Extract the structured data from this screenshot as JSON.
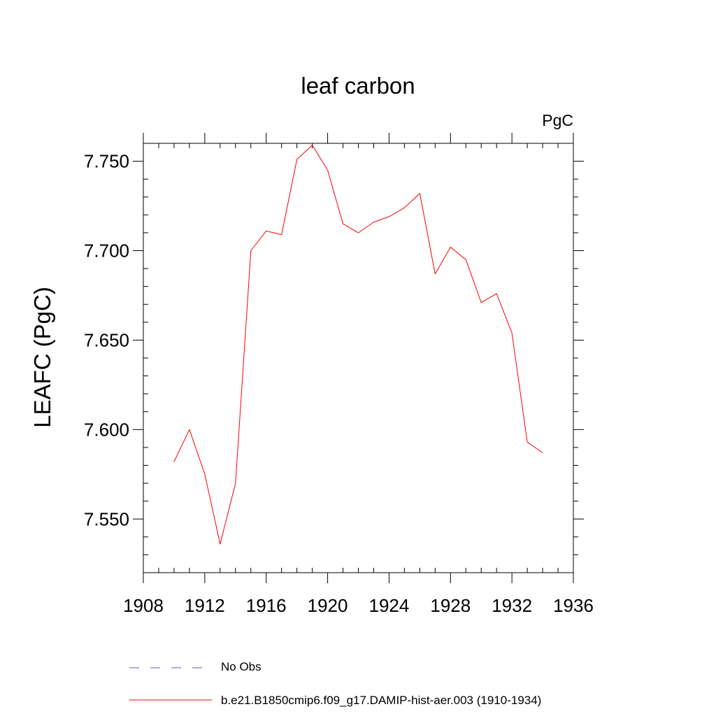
{
  "chart_data": {
    "type": "line",
    "title": "leaf carbon",
    "units_label": "PgC",
    "ylabel": "LEAFC  (PgC)",
    "xlabel": "",
    "xlim": [
      1908,
      1936
    ],
    "ylim": [
      7.52,
      7.76
    ],
    "x_ticks": [
      1908,
      1912,
      1916,
      1920,
      1924,
      1928,
      1932,
      1936
    ],
    "x_tick_labels": [
      "1908",
      "1912",
      "1916",
      "1920",
      "1924",
      "1928",
      "1932",
      "1936"
    ],
    "y_ticks": [
      7.55,
      7.6,
      7.65,
      7.7,
      7.75
    ],
    "y_tick_labels": [
      "7.550",
      "7.600",
      "7.650",
      "7.700",
      "7.750"
    ],
    "grid": false,
    "legend_position": "bottom",
    "series": [
      {
        "name": "b.e21.B1850cmip6.f09_g17.DAMIP-hist-aer.003 (1910-1934)",
        "color": "#ff0000",
        "style": "solid",
        "x": [
          1910,
          1911,
          1912,
          1913,
          1914,
          1915,
          1916,
          1917,
          1918,
          1919,
          1920,
          1921,
          1922,
          1923,
          1924,
          1925,
          1926,
          1927,
          1928,
          1929,
          1930,
          1931,
          1932,
          1933,
          1934
        ],
        "y": [
          7.582,
          7.6,
          7.575,
          7.536,
          7.57,
          7.7,
          7.711,
          7.709,
          7.751,
          7.759,
          7.745,
          7.715,
          7.71,
          7.716,
          7.719,
          7.724,
          7.732,
          7.687,
          7.702,
          7.695,
          7.671,
          7.676,
          7.654,
          7.593,
          7.587
        ]
      }
    ],
    "legend": [
      {
        "label": "No Obs",
        "color": "#6a5acd",
        "style": "dashed"
      },
      {
        "label": "b.e21.B1850cmip6.f09_g17.DAMIP-hist-aer.003 (1910-1934)",
        "color": "#ff0000",
        "style": "solid"
      }
    ]
  }
}
